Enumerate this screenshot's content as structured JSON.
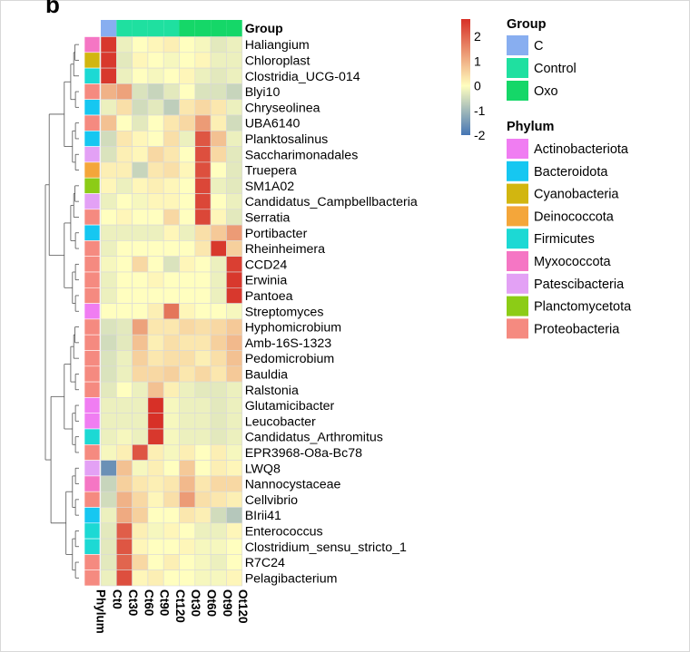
{
  "panel_label": "b",
  "chart_data": {
    "type": "heatmap",
    "columns": [
      "Ct0",
      "Ct30",
      "Ct60",
      "Ct90",
      "Ct120",
      "Ot30",
      "Ot60",
      "Ot90",
      "Ot120"
    ],
    "column_groups": [
      "C",
      "Control",
      "Control",
      "Control",
      "Control",
      "Oxo",
      "Oxo",
      "Oxo",
      "Oxo"
    ],
    "rows": [
      "Haliangium",
      "Chloroplast",
      "Clostridia_UCG-014",
      "Blyi10",
      "Chryseolinea",
      "UBA6140",
      "Planktosalinus",
      "Saccharimonadales",
      "Truepera",
      "SM1A02",
      "Candidatus_Campbellbacteria",
      "Serratia",
      "Portibacter",
      "Rheinheimera",
      "CCD24",
      "Erwinia",
      "Pantoea",
      "Streptomyces",
      "Hyphomicrobium",
      "Amb-16S-1323",
      "Pedomicrobium",
      "Bauldia",
      "Ralstonia",
      "Glutamicibacter",
      "Leucobacter",
      "Candidatus_Arthromitus",
      "EPR3968-O8a-Bc78",
      "LWQ8",
      "Nannocystaceae",
      "Cellvibrio",
      "BIrii41",
      "Enterococcus",
      "Clostridium_sensu_stricto_1",
      "R7C24",
      "Pelagibacterium"
    ],
    "row_phylum": [
      "Myxococcota",
      "Cyanobacteria",
      "Firmicutes",
      "Proteobacteria",
      "Bacteroidota",
      "Proteobacteria",
      "Bacteroidota",
      "Patescibacteria",
      "Deinococcota",
      "Planctomycetota",
      "Patescibacteria",
      "Proteobacteria",
      "Bacteroidota",
      "Proteobacteria",
      "Proteobacteria",
      "Proteobacteria",
      "Proteobacteria",
      "Actinobacteriota",
      "Proteobacteria",
      "Proteobacteria",
      "Proteobacteria",
      "Proteobacteria",
      "Proteobacteria",
      "Actinobacteriota",
      "Actinobacteriota",
      "Firmicutes",
      "Proteobacteria",
      "Patescibacteria",
      "Myxococcota",
      "Proteobacteria",
      "Bacteroidota",
      "Firmicutes",
      "Firmicutes",
      "Proteobacteria",
      "Proteobacteria"
    ],
    "values": [
      [
        2.6,
        -0.2,
        0.0,
        0.1,
        0.2,
        0.0,
        -0.1,
        -0.3,
        -0.2
      ],
      [
        2.6,
        -0.3,
        0.1,
        0.0,
        -0.1,
        0.0,
        0.1,
        -0.2,
        -0.2
      ],
      [
        2.6,
        -0.2,
        0.0,
        -0.1,
        0.0,
        0.1,
        -0.2,
        -0.3,
        -0.2
      ],
      [
        1.0,
        1.2,
        -0.4,
        -0.6,
        -0.3,
        0.0,
        -0.4,
        -0.4,
        -0.6
      ],
      [
        -0.2,
        0.4,
        -0.5,
        -0.3,
        -0.7,
        0.3,
        0.5,
        0.3,
        -0.2
      ],
      [
        0.8,
        0.0,
        -0.3,
        0.0,
        0.3,
        0.5,
        1.3,
        0.2,
        -0.5
      ],
      [
        -0.5,
        0.3,
        0.1,
        0.0,
        0.4,
        -0.2,
        2.2,
        0.8,
        -0.2
      ],
      [
        -0.4,
        0.2,
        0.1,
        0.5,
        0.3,
        0.0,
        2.3,
        0.5,
        -0.3
      ],
      [
        0.2,
        0.2,
        -0.6,
        0.3,
        0.4,
        0.1,
        2.3,
        0.0,
        -0.3
      ],
      [
        0.1,
        -0.2,
        0.1,
        0.2,
        0.1,
        0.0,
        2.4,
        -0.2,
        -0.3
      ],
      [
        -0.2,
        0.0,
        -0.1,
        0.1,
        0.1,
        0.0,
        2.4,
        0.0,
        -0.2
      ],
      [
        0.0,
        0.1,
        0.0,
        0.0,
        0.5,
        0.0,
        2.4,
        0.1,
        -0.3
      ],
      [
        -0.2,
        -0.2,
        -0.2,
        -0.2,
        0.1,
        -0.2,
        0.4,
        0.7,
        1.3
      ],
      [
        -0.2,
        0.0,
        0.0,
        0.0,
        0.0,
        0.0,
        0.3,
        2.6,
        0.6
      ],
      [
        -0.1,
        0.0,
        0.5,
        0.0,
        -0.4,
        0.1,
        0.0,
        -0.2,
        2.5
      ],
      [
        -0.2,
        0.0,
        0.0,
        0.1,
        0.0,
        0.0,
        0.0,
        -0.2,
        2.6
      ],
      [
        -0.2,
        0.0,
        0.0,
        0.0,
        0.0,
        0.0,
        0.0,
        -0.2,
        2.6
      ],
      [
        0.0,
        0.0,
        0.0,
        0.2,
        1.8,
        0.1,
        0.0,
        0.0,
        -0.1
      ],
      [
        -0.4,
        -0.3,
        1.2,
        0.3,
        0.3,
        0.5,
        0.4,
        0.5,
        0.7
      ],
      [
        -0.5,
        -0.3,
        0.8,
        0.2,
        0.4,
        0.3,
        0.3,
        0.6,
        0.9
      ],
      [
        -0.4,
        -0.2,
        0.6,
        0.3,
        0.4,
        0.4,
        0.2,
        0.4,
        0.8
      ],
      [
        -0.4,
        -0.2,
        0.5,
        0.5,
        0.6,
        0.3,
        0.5,
        0.3,
        0.7
      ],
      [
        -0.3,
        0.0,
        -0.2,
        0.8,
        0.2,
        -0.2,
        -0.3,
        -0.3,
        -0.2
      ],
      [
        -0.2,
        -0.2,
        -0.2,
        2.7,
        -0.1,
        -0.2,
        -0.2,
        -0.3,
        -0.2
      ],
      [
        -0.2,
        -0.2,
        -0.2,
        2.7,
        -0.1,
        -0.2,
        -0.2,
        -0.3,
        -0.2
      ],
      [
        -0.2,
        -0.1,
        -0.2,
        2.6,
        -0.1,
        -0.2,
        -0.2,
        -0.3,
        -0.2
      ],
      [
        -0.1,
        0.2,
        2.2,
        0.2,
        -0.1,
        0.2,
        0.0,
        0.2,
        -0.1
      ],
      [
        -1.6,
        0.8,
        -0.1,
        0.2,
        0.0,
        0.7,
        0.0,
        0.2,
        0.1
      ],
      [
        -0.6,
        0.6,
        0.3,
        0.2,
        0.3,
        0.9,
        0.3,
        0.5,
        0.5
      ],
      [
        -0.5,
        1.0,
        0.5,
        0.1,
        0.4,
        1.3,
        0.4,
        0.3,
        0.2
      ],
      [
        -0.2,
        1.1,
        0.6,
        0.0,
        0.0,
        0.3,
        0.2,
        -0.5,
        -0.8
      ],
      [
        -0.3,
        2.1,
        0.2,
        -0.1,
        0.1,
        0.0,
        -0.2,
        -0.2,
        0.1
      ],
      [
        -0.3,
        2.2,
        0.1,
        0.0,
        0.0,
        0.1,
        -0.1,
        -0.1,
        0.0
      ],
      [
        -0.3,
        2.0,
        0.5,
        0.0,
        0.2,
        0.0,
        -0.1,
        -0.2,
        0.0
      ],
      [
        -0.2,
        2.3,
        0.1,
        0.2,
        0.0,
        0.0,
        -0.1,
        -0.1,
        0.1
      ]
    ],
    "color_scale": {
      "range": [
        -2,
        2.7
      ],
      "ticks": [
        2,
        1,
        0,
        -1,
        -2
      ],
      "colors": [
        "#4575b4",
        "#fffebf",
        "#d73027"
      ]
    },
    "annotation_labels": {
      "column_annotation": "Group",
      "row_annotation": "Phylum"
    },
    "legend": {
      "position": "right",
      "group_title": "Group",
      "groups": [
        {
          "label": "C",
          "color": "#88aef0"
        },
        {
          "label": "Control",
          "color": "#1fe0a0"
        },
        {
          "label": "Oxo",
          "color": "#15d768"
        }
      ],
      "phylum_title": "Phylum",
      "phyla": [
        {
          "label": "Actinobacteriota",
          "color": "#f07df2"
        },
        {
          "label": "Bacteroidota",
          "color": "#16c7f1"
        },
        {
          "label": "Cyanobacteria",
          "color": "#d2b610"
        },
        {
          "label": "Deinococcota",
          "color": "#f4a63a"
        },
        {
          "label": "Firmicutes",
          "color": "#1cd9d4"
        },
        {
          "label": "Myxococcota",
          "color": "#f576c4"
        },
        {
          "label": "Patescibacteria",
          "color": "#e3a1f5"
        },
        {
          "label": "Planctomycetota",
          "color": "#8ccc16"
        },
        {
          "label": "Proteobacteria",
          "color": "#f58a80"
        }
      ]
    }
  }
}
